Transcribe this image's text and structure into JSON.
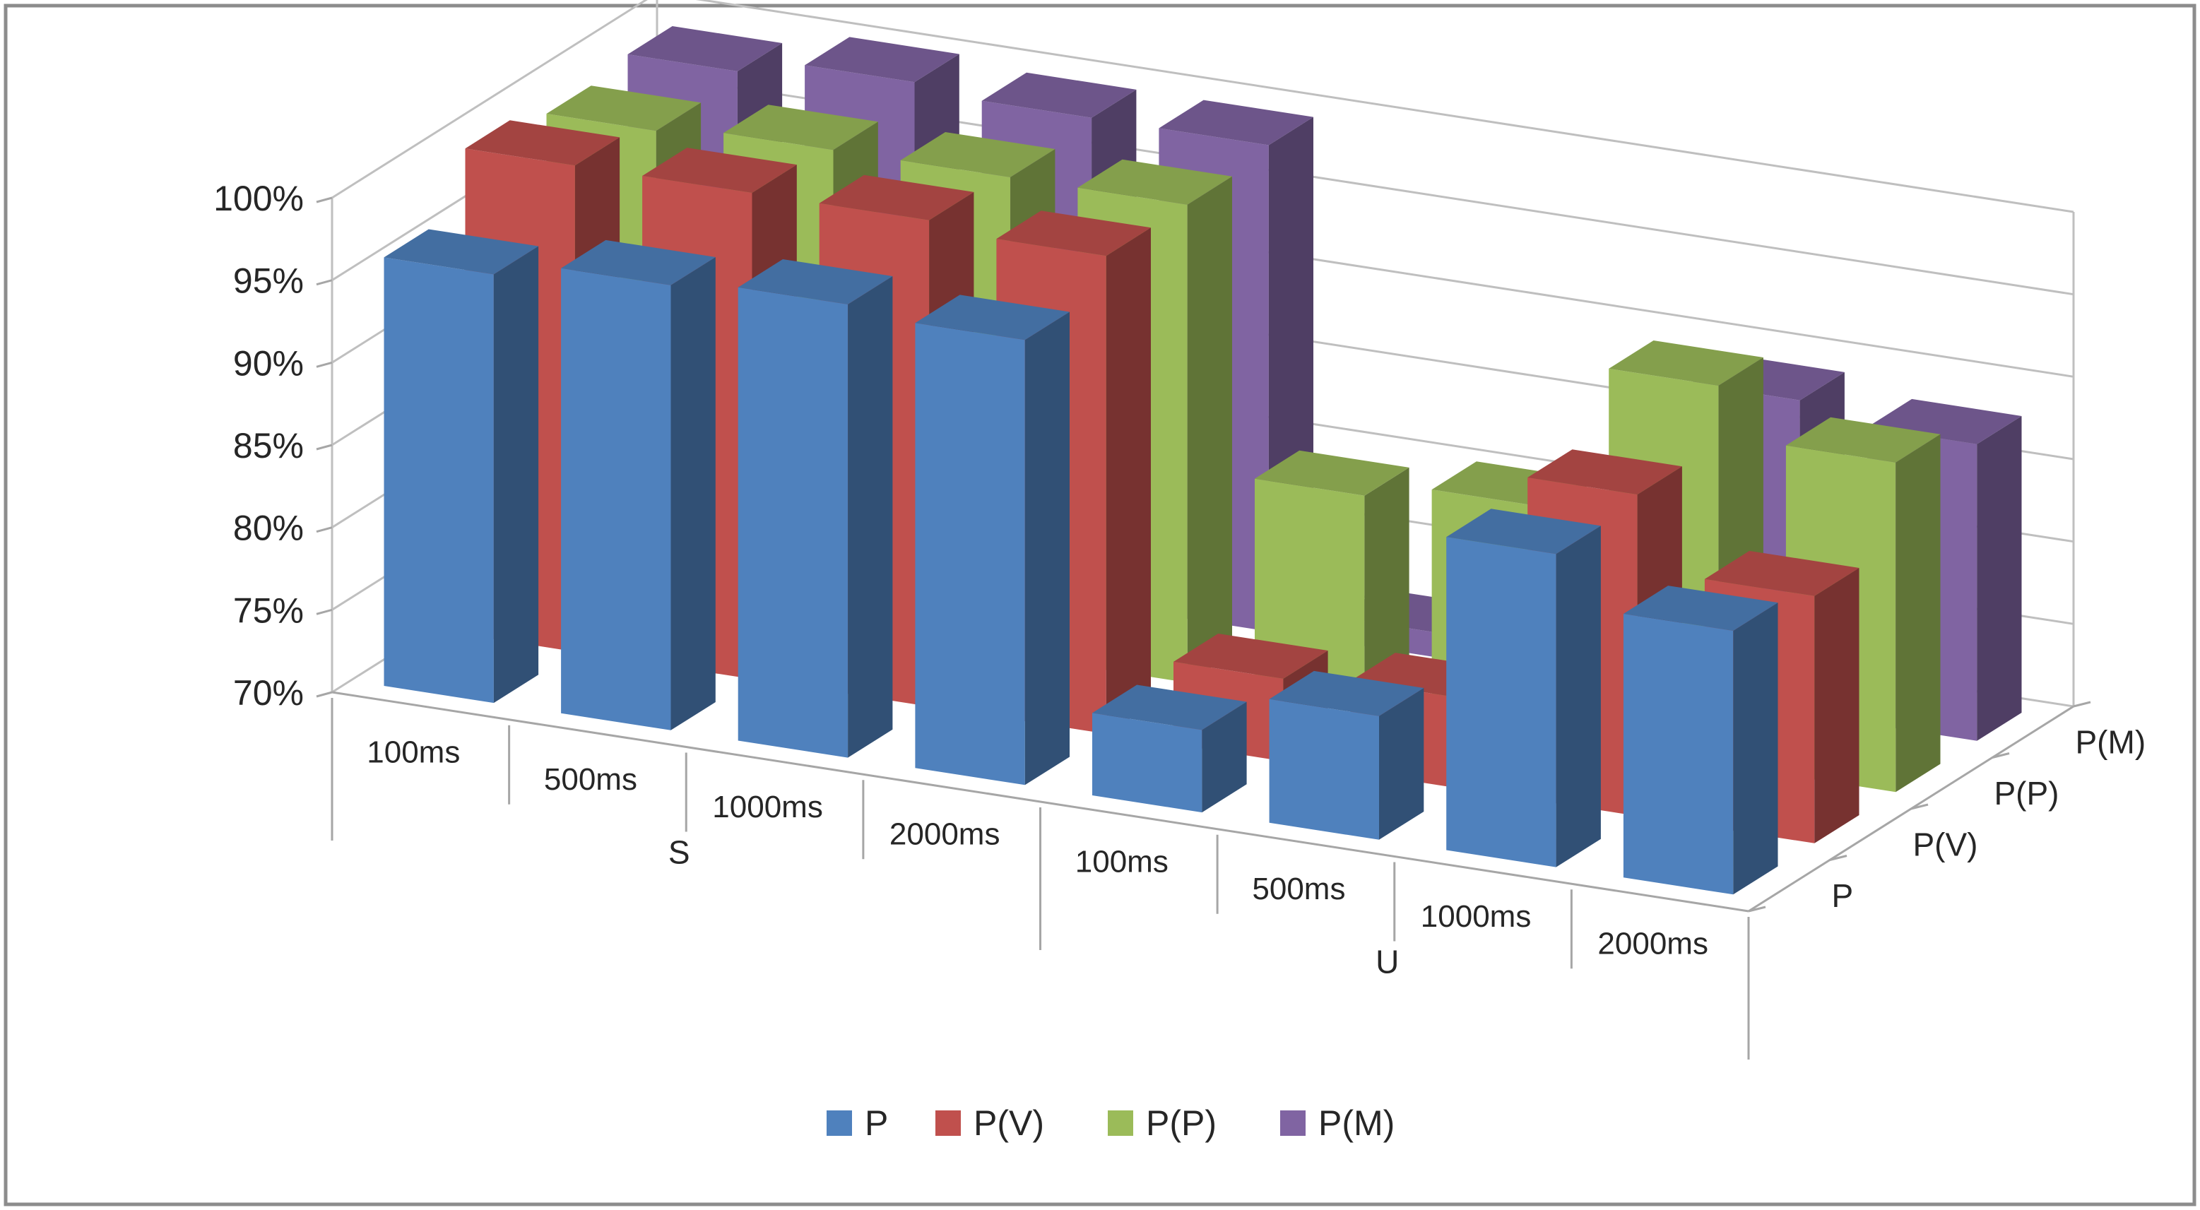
{
  "chart_data": {
    "type": "bar",
    "variant": "3d-column",
    "title": "",
    "xlabel": "",
    "ylabel": "",
    "ylim": [
      70,
      100
    ],
    "y_ticks": [
      "70%",
      "75%",
      "80%",
      "85%",
      "90%",
      "95%",
      "100%"
    ],
    "y_tick_values": [
      70,
      75,
      80,
      85,
      90,
      95,
      100
    ],
    "groups": [
      {
        "name": "S",
        "categories": [
          "100ms",
          "500ms",
          "1000ms",
          "2000ms"
        ]
      },
      {
        "name": "U",
        "categories": [
          "100ms",
          "500ms",
          "1000ms",
          "2000ms"
        ]
      }
    ],
    "categories": [
      "100ms",
      "500ms",
      "1000ms",
      "2000ms",
      "100ms",
      "500ms",
      "1000ms",
      "2000ms"
    ],
    "series": [
      {
        "name": "P",
        "color": "#4f81bd",
        "values": [
          96,
          97,
          97.5,
          97,
          75,
          77.5,
          89,
          86
        ]
      },
      {
        "name": "P(V)",
        "color": "#c0504d",
        "values": [
          99.5,
          99.5,
          99.5,
          99,
          75,
          75.5,
          89.5,
          85
        ]
      },
      {
        "name": "P(P)",
        "color": "#9bbb59",
        "values": [
          98.5,
          99,
          99,
          99,
          83,
          84,
          93,
          90
        ]
      },
      {
        "name": "P(M)",
        "color": "#8064a2",
        "values": [
          99,
          100,
          99.5,
          99.5,
          71.5,
          71.5,
          89,
          88
        ]
      }
    ],
    "legend_position": "bottom",
    "grid": true
  }
}
